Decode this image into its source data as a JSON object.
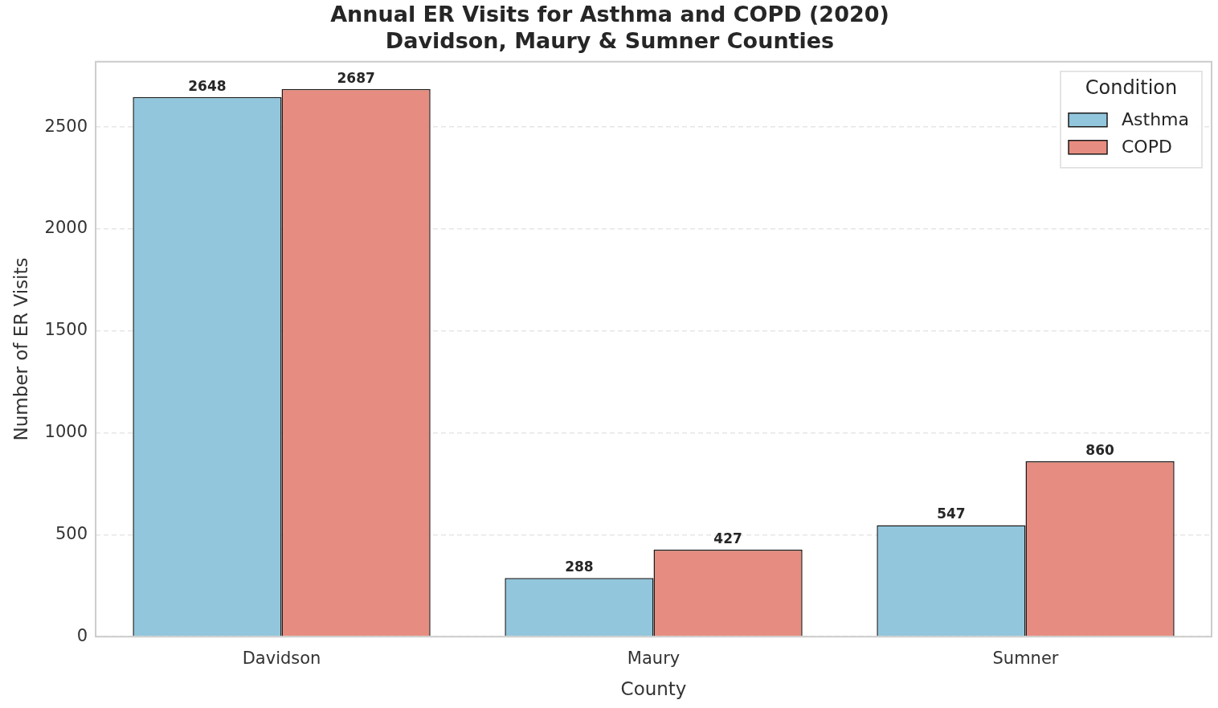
{
  "chart_data": {
    "type": "bar",
    "title": "Annual ER Visits for Asthma and COPD (2020)\nDavidson, Maury & Sumner Counties",
    "xlabel": "County",
    "ylabel": "Number of ER Visits",
    "legend_title": "Condition",
    "categories": [
      "Davidson",
      "Maury",
      "Sumner"
    ],
    "series": [
      {
        "name": "Asthma",
        "color": "#92c6dc",
        "values": [
          2648,
          288,
          547
        ]
      },
      {
        "name": "COPD",
        "color": "#e78c80",
        "values": [
          2687,
          427,
          860
        ]
      }
    ],
    "ylim": [
      0,
      2821
    ],
    "yticks": [
      0,
      500,
      1000,
      1500,
      2000,
      2500
    ],
    "grid": "y",
    "legend": "top right",
    "data_labels": true
  }
}
